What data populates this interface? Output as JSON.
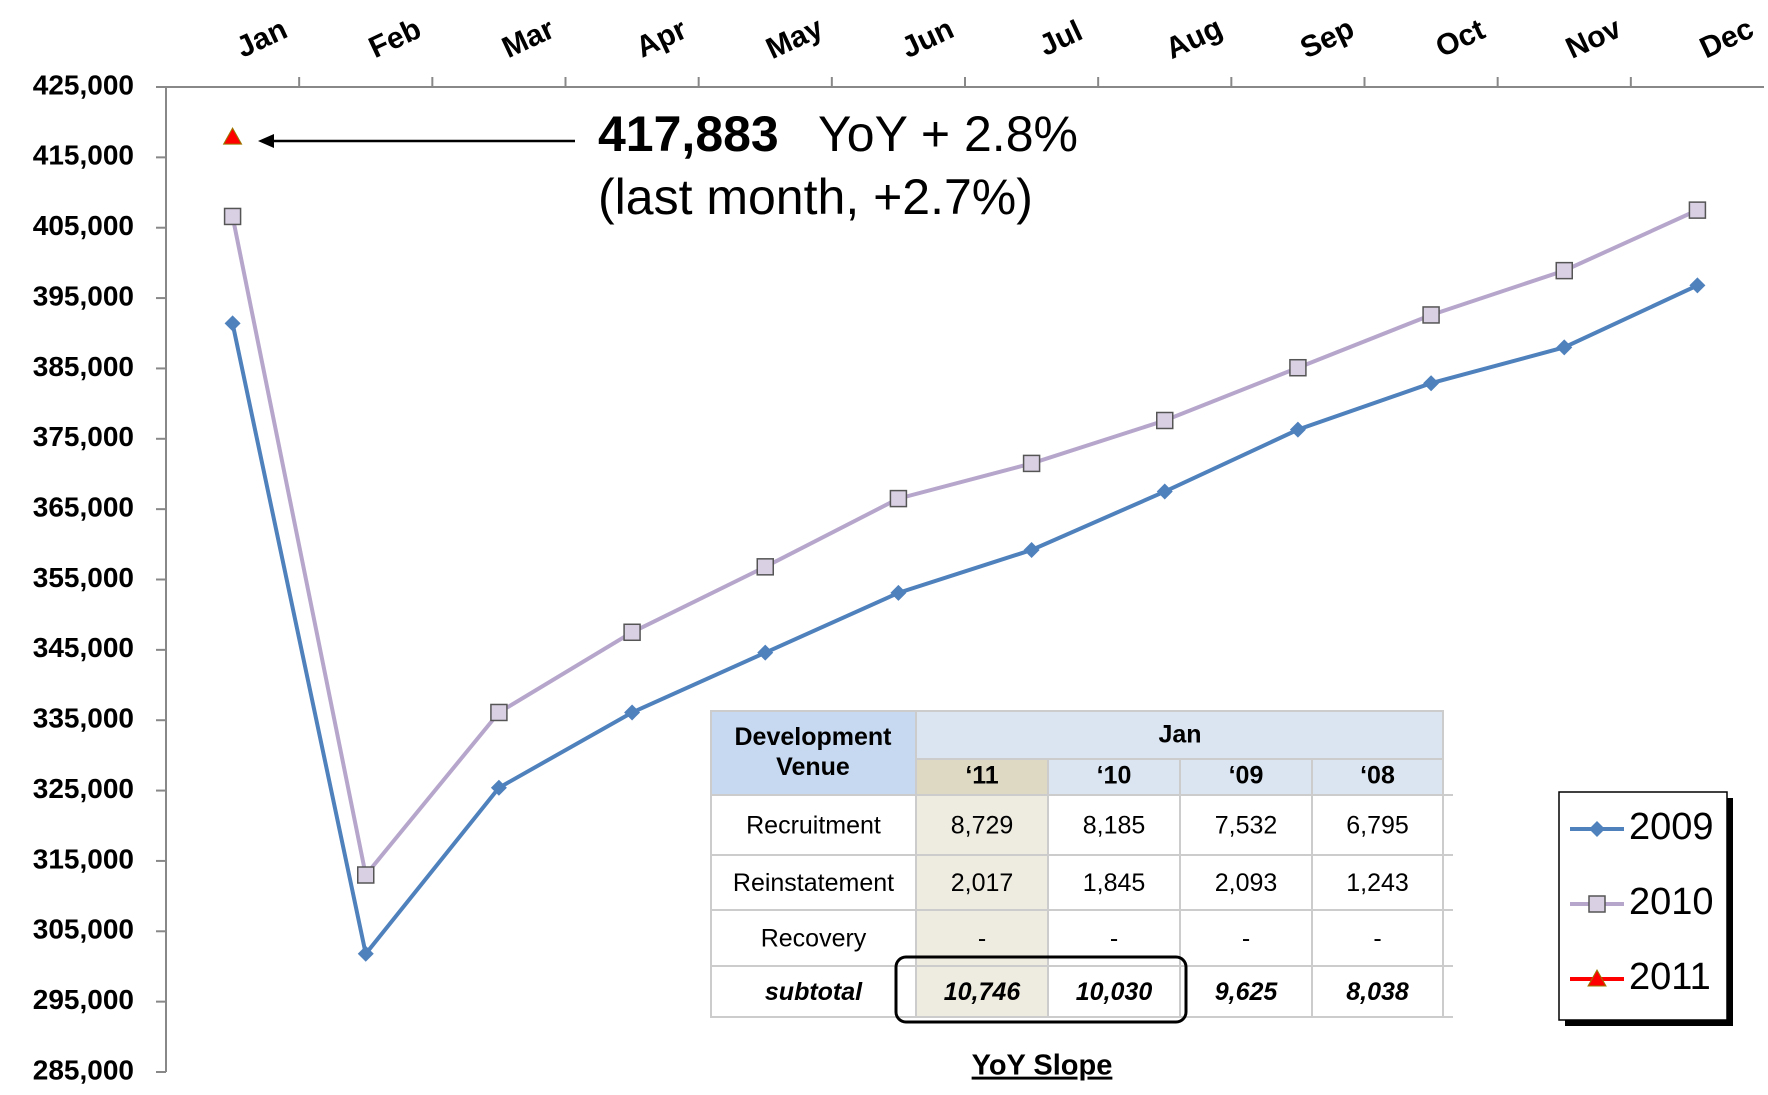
{
  "chart_data": {
    "type": "line",
    "categories": [
      "Jan",
      "Feb",
      "Mar",
      "Apr",
      "May",
      "Jun",
      "Jul",
      "Aug",
      "Sep",
      "Oct",
      "Nov",
      "Dec"
    ],
    "series": [
      {
        "name": "2009",
        "color": "#4f81bd",
        "marker": "diamond",
        "values": [
          391400,
          301800,
          325400,
          336100,
          344600,
          353100,
          359200,
          367500,
          376300,
          382900,
          388000,
          396800
        ]
      },
      {
        "name": "2010",
        "color": "#b7a6cc",
        "marker": "square",
        "values": [
          406600,
          313000,
          336100,
          347500,
          356800,
          366500,
          371500,
          377600,
          385100,
          392600,
          398900,
          407500
        ]
      },
      {
        "name": "2011",
        "color": "#ff0000",
        "marker": "triangle",
        "values": [
          417883,
          null,
          null,
          null,
          null,
          null,
          null,
          null,
          null,
          null,
          null,
          null
        ]
      }
    ],
    "ylim": [
      285000,
      425000
    ],
    "yticks": [
      {
        "value": 285000,
        "label": "285,000"
      },
      {
        "value": 295000,
        "label": "295,000"
      },
      {
        "value": 305000,
        "label": "305,000"
      },
      {
        "value": 315000,
        "label": "315,000"
      },
      {
        "value": 325000,
        "label": "325,000"
      },
      {
        "value": 335000,
        "label": "335,000"
      },
      {
        "value": 345000,
        "label": "345,000"
      },
      {
        "value": 355000,
        "label": "355,000"
      },
      {
        "value": 365000,
        "label": "365,000"
      },
      {
        "value": 375000,
        "label": "375,000"
      },
      {
        "value": 385000,
        "label": "385,000"
      },
      {
        "value": 395000,
        "label": "395,000"
      },
      {
        "value": 405000,
        "label": "405,000"
      },
      {
        "value": 415000,
        "label": "415,000"
      },
      {
        "value": 425000,
        "label": "425,000"
      }
    ],
    "annotations": [
      "417,883",
      "YoY + 2.8%",
      "(last month, +2.7%)"
    ],
    "legend": "lower right"
  },
  "table": {
    "header": [
      "Development Venue",
      "Jan"
    ],
    "columns": [
      "‘11",
      "‘10",
      "‘09",
      "‘08"
    ],
    "rows": [
      [
        "Recruitment",
        "8,729",
        "8,185",
        "7,532",
        "6,795"
      ],
      [
        "Reinstatement",
        "2,017",
        "1,845",
        "2,093",
        "1,243"
      ],
      [
        "Recovery",
        "-",
        "-",
        "-",
        "-"
      ],
      [
        "subtotal",
        "10,746",
        "10,030",
        "9,625",
        "8,038"
      ]
    ],
    "caption": "YoY Slope"
  }
}
